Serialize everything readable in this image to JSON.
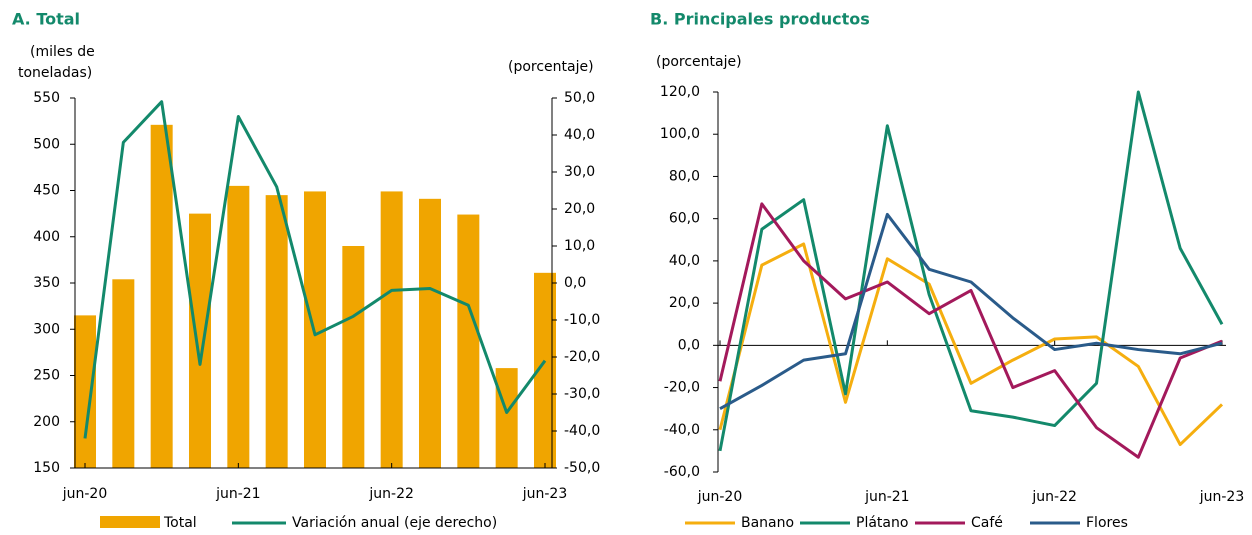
{
  "chart_data": [
    {
      "type": "bar_line",
      "title": "A. Total",
      "ylabel": [
        "(miles de",
        "toneladas)"
      ],
      "y2label": "(porcentaje)",
      "categories": [
        "jun-20",
        null,
        null,
        null,
        "jun-21",
        null,
        null,
        null,
        "jun-22",
        null,
        null,
        null,
        "jun-23"
      ],
      "series": [
        {
          "name": "Total",
          "type": "bar",
          "color": "#f0a500",
          "values": [
            315,
            354,
            521,
            425,
            455,
            445,
            449,
            390,
            449,
            441,
            424,
            258,
            361
          ]
        },
        {
          "name": "Variación anual (eje derecho)",
          "type": "line",
          "axis": "y2",
          "color": "#13896b",
          "values": [
            -42,
            38,
            49,
            -22,
            45,
            26,
            -14,
            -9,
            -2,
            -1.5,
            -6,
            -35,
            -21
          ]
        }
      ],
      "ylim": [
        150,
        550
      ],
      "yticks": [
        150,
        200,
        250,
        300,
        350,
        400,
        450,
        500,
        550
      ],
      "y2lim": [
        -50,
        50
      ],
      "y2ticks": [
        {
          "value": -50,
          "label": "-50,0"
        },
        {
          "value": -40,
          "label": "-40,0"
        },
        {
          "value": -30,
          "label": "-30,0"
        },
        {
          "value": -20,
          "label": "-20,0"
        },
        {
          "value": -10,
          "label": "-10,0"
        },
        {
          "value": 0,
          "label": "0,0"
        },
        {
          "value": 10,
          "label": "10,0"
        },
        {
          "value": 20,
          "label": "20,0"
        },
        {
          "value": 30,
          "label": "30,0"
        },
        {
          "value": 40,
          "label": "40,0"
        },
        {
          "value": 50,
          "label": "50,0"
        }
      ],
      "legend": "bottom"
    },
    {
      "type": "line",
      "title": "B. Principales productos",
      "ylabel": "(porcentaje)",
      "categories": [
        "jun-20",
        null,
        null,
        null,
        "jun-21",
        null,
        null,
        null,
        "jun-22",
        null,
        null,
        null,
        "jun-23"
      ],
      "series": [
        {
          "name": "Banano",
          "color": "#f5ae0f",
          "values": [
            -40,
            38,
            48,
            -27,
            41,
            29,
            -18,
            -7,
            3,
            4,
            -10,
            -47,
            -28
          ]
        },
        {
          "name": "Plátano",
          "color": "#13896b",
          "values": [
            -50,
            55,
            69,
            -23,
            104,
            24,
            -31,
            -34,
            -38,
            -18,
            120,
            46,
            10
          ]
        },
        {
          "name": "Café",
          "color": "#a3195b",
          "values": [
            -17,
            67,
            40,
            22,
            30,
            15,
            26,
            -20,
            -12,
            -39,
            -53,
            -6,
            2
          ]
        },
        {
          "name": "Flores",
          "color": "#2a5b8a",
          "values": [
            -30,
            -19,
            -7,
            -4,
            62,
            36,
            30,
            13,
            -2,
            1,
            -2,
            -4,
            1
          ]
        }
      ],
      "ylim": [
        -60,
        120
      ],
      "yticks": [
        {
          "value": -60,
          "label": "-60,0"
        },
        {
          "value": -40,
          "label": "-40,0"
        },
        {
          "value": -20,
          "label": "-20,0"
        },
        {
          "value": 0,
          "label": "0,0"
        },
        {
          "value": 20,
          "label": "20,0"
        },
        {
          "value": 40,
          "label": "40,0"
        },
        {
          "value": 60,
          "label": "60,0"
        },
        {
          "value": 80,
          "label": "80,0"
        },
        {
          "value": 100,
          "label": "100,0"
        },
        {
          "value": 120,
          "label": "120,0"
        }
      ],
      "legend": "bottom"
    }
  ]
}
